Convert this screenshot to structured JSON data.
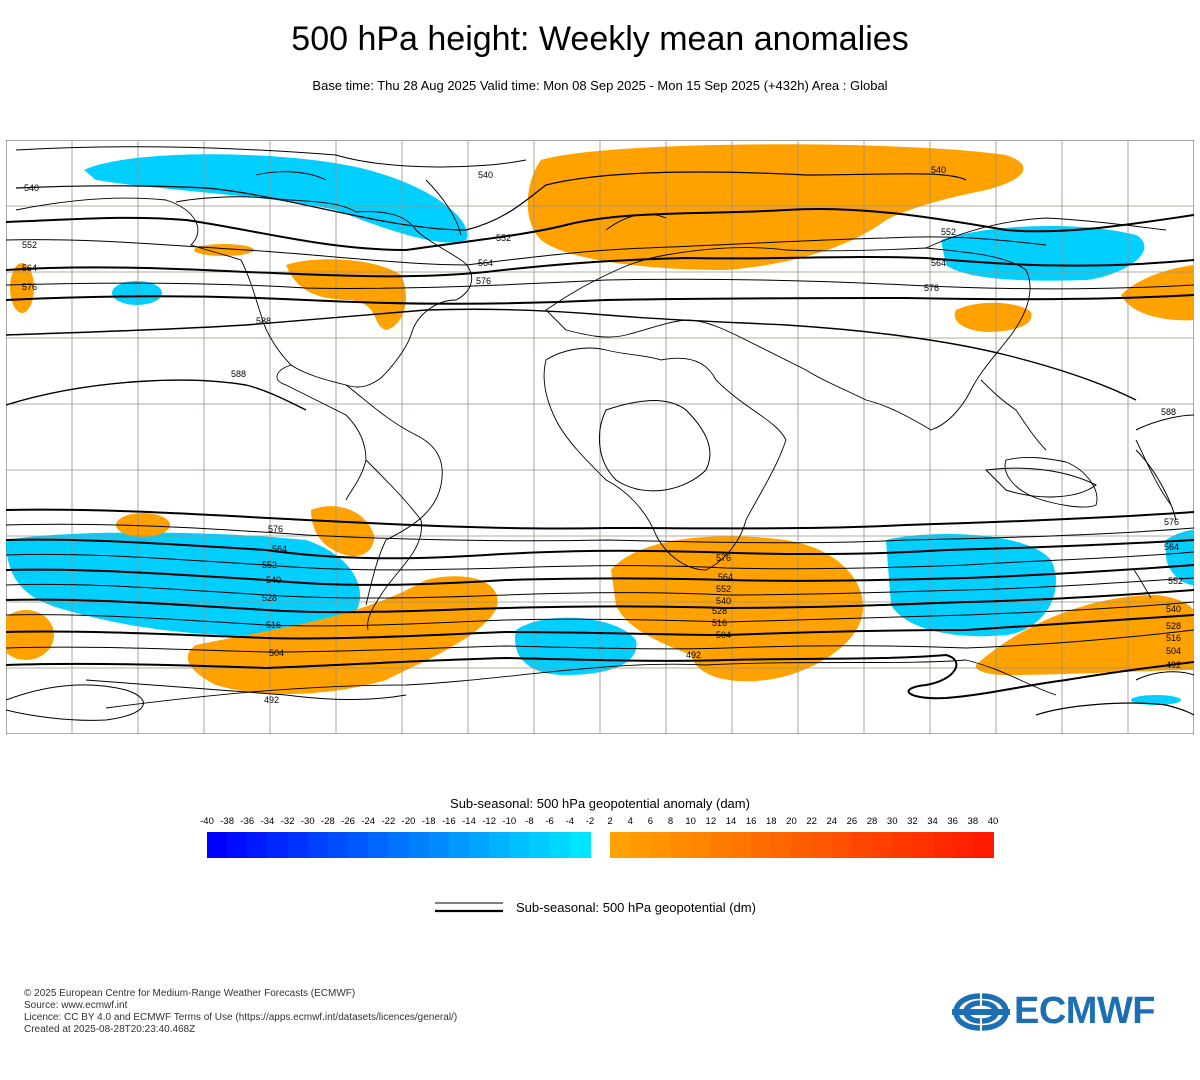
{
  "header": {
    "title": "500 hPa height: Weekly mean anomalies",
    "subtitle": "Base time: Thu 28 Aug 2025 Valid time: Mon 08 Sep 2025 - Mon 15 Sep 2025 (+432h) Area : Global"
  },
  "map": {
    "contour_labels": [
      "540",
      "540",
      "540",
      "552",
      "552",
      "552",
      "564",
      "564",
      "564",
      "576",
      "576",
      "576",
      "588",
      "588",
      "588",
      "576",
      "564",
      "552",
      "540",
      "528",
      "516",
      "504",
      "492",
      "576",
      "564",
      "552",
      "540",
      "528",
      "516",
      "504",
      "492",
      "576",
      "564",
      "552",
      "540",
      "528",
      "516",
      "504",
      "492"
    ]
  },
  "colorbar": {
    "title": "Sub-seasonal: 500 hPa geopotential anomaly (dam)",
    "ticks": [
      "-40",
      "-38",
      "-36",
      "-34",
      "-32",
      "-30",
      "-28",
      "-26",
      "-24",
      "-22",
      "-20",
      "-18",
      "-16",
      "-14",
      "-12",
      "-10",
      "-8",
      "-6",
      "-4",
      "-2",
      "2",
      "4",
      "6",
      "8",
      "10",
      "12",
      "14",
      "16",
      "18",
      "20",
      "22",
      "24",
      "26",
      "28",
      "30",
      "32",
      "34",
      "36",
      "38",
      "40"
    ],
    "neg_start": "#0000ff",
    "neg_end": "#00e5ff",
    "pos_start": "#ffa200",
    "pos_end": "#ff1a00"
  },
  "legend": {
    "line_label": "Sub-seasonal: 500 hPa geopotential (dm)"
  },
  "footer": {
    "line1": "© 2025 European Centre for Medium-Range Weather Forecasts (ECMWF)",
    "line2": "Source: www.ecmwf.int",
    "line3": "Licence: CC BY 4.0 and ECMWF Terms of Use (https://apps.ecmwf.int/datasets/licences/general/)",
    "line4": "Created at 2025-08-28T20:23:40.468Z"
  },
  "logo": {
    "text": "ECMWF",
    "color": "#1d6fb5"
  }
}
